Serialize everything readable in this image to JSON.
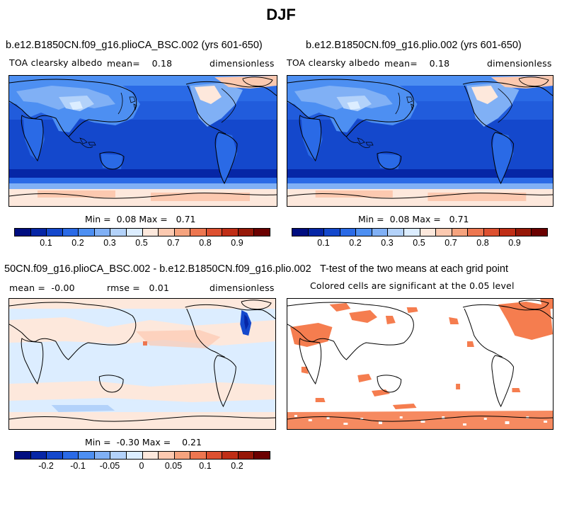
{
  "figure_title": "DJF",
  "panels": {
    "top_left": {
      "title": "b.e12.B1850CN.f09_g16.plioCA_BSC.002 (yrs 601-650)",
      "variable": "TOA clearsky albedo",
      "mean_label": "mean=",
      "mean_value": "0.18",
      "units": "dimensionless",
      "min_label": "Min =",
      "min_value": "0.08",
      "max_label": "Max =",
      "max_value": "0.71"
    },
    "top_right": {
      "title": "b.e12.B1850CN.f09_g16.plio.002 (yrs 601-650)",
      "variable": "TOA clearsky albedo",
      "mean_label": "mean=",
      "mean_value": "0.18",
      "units": "dimensionless",
      "min_label": "Min =",
      "min_value": "0.08",
      "max_label": "Max =",
      "max_value": "0.71"
    },
    "bottom_left": {
      "title": "50CN.f09_g16.plioCA_BSC.002 - b.e12.B1850CN.f09_g16.plio.002",
      "mean_label": "mean =",
      "mean_value": "-0.00",
      "rmse_label": "rmse =",
      "rmse_value": "0.01",
      "units": "dimensionless",
      "min_label": "Min =",
      "min_value": "-0.30",
      "max_label": "Max =",
      "max_value": "0.21"
    },
    "bottom_right": {
      "title": "T-test of the two means at each grid point",
      "subtitle": "Colored cells are significant at the 0.05 level"
    }
  },
  "colorbar_abs": {
    "colors": [
      "#000d80",
      "#0626a6",
      "#1448cc",
      "#2a6ae6",
      "#4d8ff2",
      "#80b0f5",
      "#b3d2fa",
      "#dcedff",
      "#fde8dc",
      "#fcc9b0",
      "#f5a37e",
      "#ed7650",
      "#dd5030",
      "#c02e16",
      "#961808",
      "#6b0000"
    ],
    "tick_labels": [
      "0.1",
      "0.2",
      "0.3",
      "0.5",
      "0.7",
      "0.8",
      "0.9"
    ]
  },
  "colorbar_diff": {
    "colors": [
      "#000d80",
      "#0626a6",
      "#1448cc",
      "#2a6ae6",
      "#4d8ff2",
      "#80b0f5",
      "#b3d2fa",
      "#dcedff",
      "#fde8dc",
      "#fcc9b0",
      "#f5a37e",
      "#ed7650",
      "#dd5030",
      "#c02e16",
      "#961808",
      "#6b0000"
    ],
    "tick_labels": [
      "-0.2",
      "-0.1",
      "-0.05",
      "0",
      "0.05",
      "0.1",
      "0.2"
    ]
  }
}
